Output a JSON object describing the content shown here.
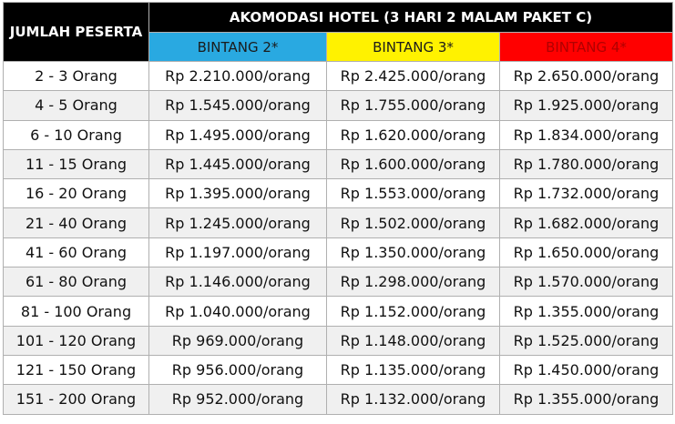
{
  "header": {
    "row_label": "JUMLAH PESERTA",
    "group_label": "AKOMODASI HOTEL (3 HARI 2 MALAM PAKET C)",
    "columns": [
      "BINTANG 2*",
      "BINTANG 3*",
      "BINTANG 4*"
    ]
  },
  "table": {
    "rows": [
      [
        "2 - 3 Orang",
        "Rp 2.210.000/orang",
        "Rp 2.425.000/orang",
        "Rp 2.650.000/orang"
      ],
      [
        "4 - 5 Orang",
        "Rp 1.545.000/orang",
        "Rp 1.755.000/orang",
        "Rp 1.925.000/orang"
      ],
      [
        "6 - 10 Orang",
        "Rp 1.495.000/orang",
        "Rp 1.620.000/orang",
        "Rp 1.834.000/orang"
      ],
      [
        "11 - 15 Orang",
        "Rp 1.445.000/orang",
        "Rp 1.600.000/orang",
        "Rp 1.780.000/orang"
      ],
      [
        "16 - 20 Orang",
        "Rp 1.395.000/orang",
        "Rp 1.553.000/orang",
        "Rp 1.732.000/orang"
      ],
      [
        "21 - 40 Orang",
        "Rp 1.245.000/orang",
        "Rp 1.502.000/orang",
        "Rp 1.682.000/orang"
      ],
      [
        "41 - 60 Orang",
        "Rp 1.197.000/orang",
        "Rp 1.350.000/orang",
        "Rp 1.650.000/orang"
      ],
      [
        "61 - 80 Orang",
        "Rp 1.146.000/orang",
        "Rp 1.298.000/orang",
        "Rp 1.570.000/orang"
      ],
      [
        "81 - 100 Orang",
        "Rp 1.040.000/orang",
        "Rp 1.152.000/orang",
        "Rp 1.355.000/orang"
      ],
      [
        "101 - 120 Orang",
        "Rp 969.000/orang",
        "Rp 1.148.000/orang",
        "Rp 1.525.000/orang"
      ],
      [
        "121 - 150 Orang",
        "Rp 956.000/orang",
        "Rp 1.135.000/orang",
        "Rp 1.450.000/orang"
      ],
      [
        "151 - 200 Orang",
        "Rp 952.000/orang",
        "Rp 1.132.000/orang",
        "Rp 1.355.000/orang"
      ]
    ]
  }
}
